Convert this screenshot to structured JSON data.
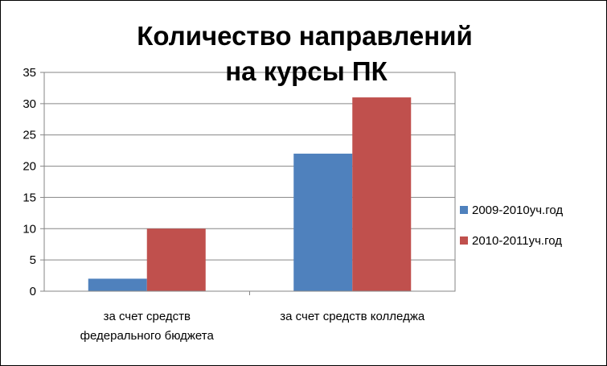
{
  "chart_data": {
    "type": "bar",
    "title_lines": [
      "Количество направлений",
      "на курсы ПК"
    ],
    "categories": [
      [
        "за счет средств",
        "федерального бюджета"
      ],
      [
        "за счет средств колледжа"
      ]
    ],
    "series": [
      {
        "name": "2009-2010уч.год",
        "values": [
          2,
          22
        ],
        "color": "#4f81bd"
      },
      {
        "name": "2010-2011уч.год",
        "values": [
          10,
          31
        ],
        "color": "#c0504d"
      }
    ],
    "ylim": [
      0,
      35
    ],
    "yticks": [
      "0",
      "5",
      "10",
      "15",
      "20",
      "25",
      "30",
      "35"
    ],
    "grid": true,
    "legend_position": "right"
  }
}
